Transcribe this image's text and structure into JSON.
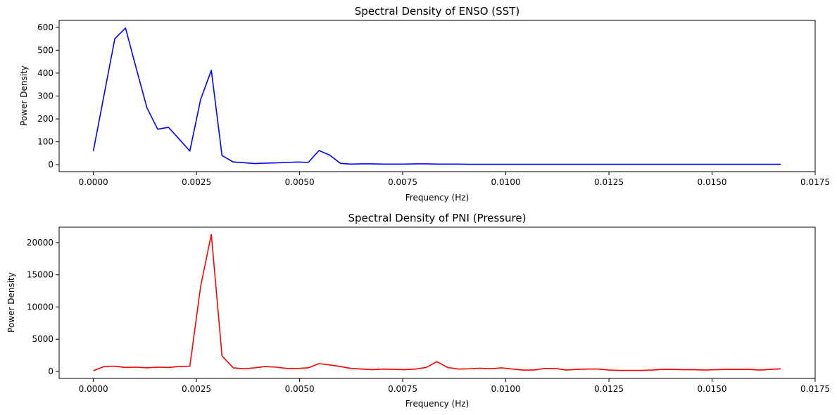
{
  "chart_data": [
    {
      "type": "line",
      "title": "Spectral Density of ENSO (SST)",
      "xlabel": "Frequency (Hz)",
      "ylabel": "Power Density",
      "xlim": [
        -0.00083,
        0.0175
      ],
      "ylim": [
        -30,
        630
      ],
      "xticks": [
        0.0,
        0.0025,
        0.005,
        0.0075,
        0.01,
        0.0125,
        0.015,
        0.0175
      ],
      "xtick_labels": [
        "0.0000",
        "0.0025",
        "0.0050",
        "0.0075",
        "0.0100",
        "0.0125",
        "0.0150",
        "0.0175"
      ],
      "yticks": [
        0,
        100,
        200,
        300,
        400,
        500,
        600
      ],
      "ytick_labels": [
        "0",
        "100",
        "200",
        "300",
        "400",
        "500",
        "600"
      ],
      "grid": false,
      "color": "#0000ff",
      "series": [
        {
          "x": [
            0.0,
            0.00052,
            0.00078,
            0.00104,
            0.0013,
            0.00156,
            0.00182,
            0.00208,
            0.00234,
            0.0026,
            0.00286,
            0.00312,
            0.00339,
            0.00365,
            0.00391,
            0.00417,
            0.00443,
            0.00469,
            0.00495,
            0.00521,
            0.00547,
            0.00573,
            0.00599,
            0.00625,
            0.00651,
            0.00677,
            0.00703,
            0.00729,
            0.00755,
            0.00781,
            0.00807,
            0.00833,
            0.00859,
            0.00885,
            0.00911,
            0.00937,
            0.00963,
            0.00989,
            0.01016,
            0.01042,
            0.01068,
            0.01094,
            0.0112,
            0.01146,
            0.01172,
            0.01198,
            0.01224,
            0.0125,
            0.01276,
            0.01302,
            0.01328,
            0.01354,
            0.0138,
            0.01406,
            0.01432,
            0.01458,
            0.01484,
            0.0151,
            0.01536,
            0.01562,
            0.01589,
            0.01615,
            0.01641,
            0.01667
          ],
          "values": [
            60,
            550,
            597,
            420,
            248,
            155,
            163,
            112,
            60,
            285,
            412,
            40,
            12,
            9,
            5,
            7,
            8,
            10,
            12,
            10,
            62,
            42,
            6,
            3,
            4,
            4,
            3,
            3,
            3,
            4,
            4,
            3,
            3,
            3,
            2,
            2,
            2,
            2,
            2,
            2,
            2,
            2,
            2,
            2,
            2,
            2,
            2,
            2,
            2,
            2,
            2,
            2,
            2,
            2,
            2,
            2,
            2,
            2,
            2,
            2,
            2,
            2,
            2,
            2
          ]
        }
      ]
    },
    {
      "type": "line",
      "title": "Spectral Density of PNI (Pressure)",
      "xlabel": "Frequency (Hz)",
      "ylabel": "Power Density",
      "xlim": [
        -0.00083,
        0.0175
      ],
      "ylim": [
        -1100,
        22400
      ],
      "xticks": [
        0.0,
        0.0025,
        0.005,
        0.0075,
        0.01,
        0.0125,
        0.015,
        0.0175
      ],
      "xtick_labels": [
        "0.0000",
        "0.0025",
        "0.0050",
        "0.0075",
        "0.0100",
        "0.0125",
        "0.0150",
        "0.0175"
      ],
      "yticks": [
        0,
        5000,
        10000,
        15000,
        20000
      ],
      "ytick_labels": [
        "0",
        "5000",
        "10000",
        "15000",
        "20000"
      ],
      "grid": false,
      "color": "#ff0000",
      "series": [
        {
          "x": [
            0.0,
            0.00026,
            0.00052,
            0.00078,
            0.00104,
            0.0013,
            0.00156,
            0.00182,
            0.00208,
            0.00234,
            0.0026,
            0.00286,
            0.00312,
            0.00339,
            0.00365,
            0.00391,
            0.00417,
            0.00443,
            0.00469,
            0.00495,
            0.00521,
            0.00547,
            0.00573,
            0.00599,
            0.00625,
            0.00651,
            0.00677,
            0.00703,
            0.00729,
            0.00755,
            0.00781,
            0.00807,
            0.00833,
            0.00859,
            0.00885,
            0.00911,
            0.00937,
            0.00963,
            0.00989,
            0.01016,
            0.01042,
            0.01068,
            0.01094,
            0.0112,
            0.01146,
            0.01172,
            0.01198,
            0.01224,
            0.0125,
            0.01276,
            0.01302,
            0.01328,
            0.01354,
            0.0138,
            0.01406,
            0.01432,
            0.01458,
            0.01484,
            0.0151,
            0.01536,
            0.01562,
            0.01589,
            0.01615,
            0.01641,
            0.01667
          ],
          "values": [
            100,
            750,
            800,
            600,
            650,
            550,
            650,
            600,
            750,
            800,
            13200,
            21300,
            2400,
            550,
            400,
            550,
            750,
            650,
            450,
            450,
            550,
            1200,
            1000,
            750,
            450,
            350,
            250,
            350,
            300,
            250,
            350,
            600,
            1500,
            600,
            350,
            400,
            500,
            400,
            550,
            350,
            200,
            200,
            450,
            450,
            200,
            300,
            350,
            350,
            200,
            150,
            150,
            150,
            200,
            300,
            300,
            250,
            250,
            200,
            250,
            300,
            300,
            300,
            200,
            300,
            400
          ]
        }
      ]
    }
  ]
}
